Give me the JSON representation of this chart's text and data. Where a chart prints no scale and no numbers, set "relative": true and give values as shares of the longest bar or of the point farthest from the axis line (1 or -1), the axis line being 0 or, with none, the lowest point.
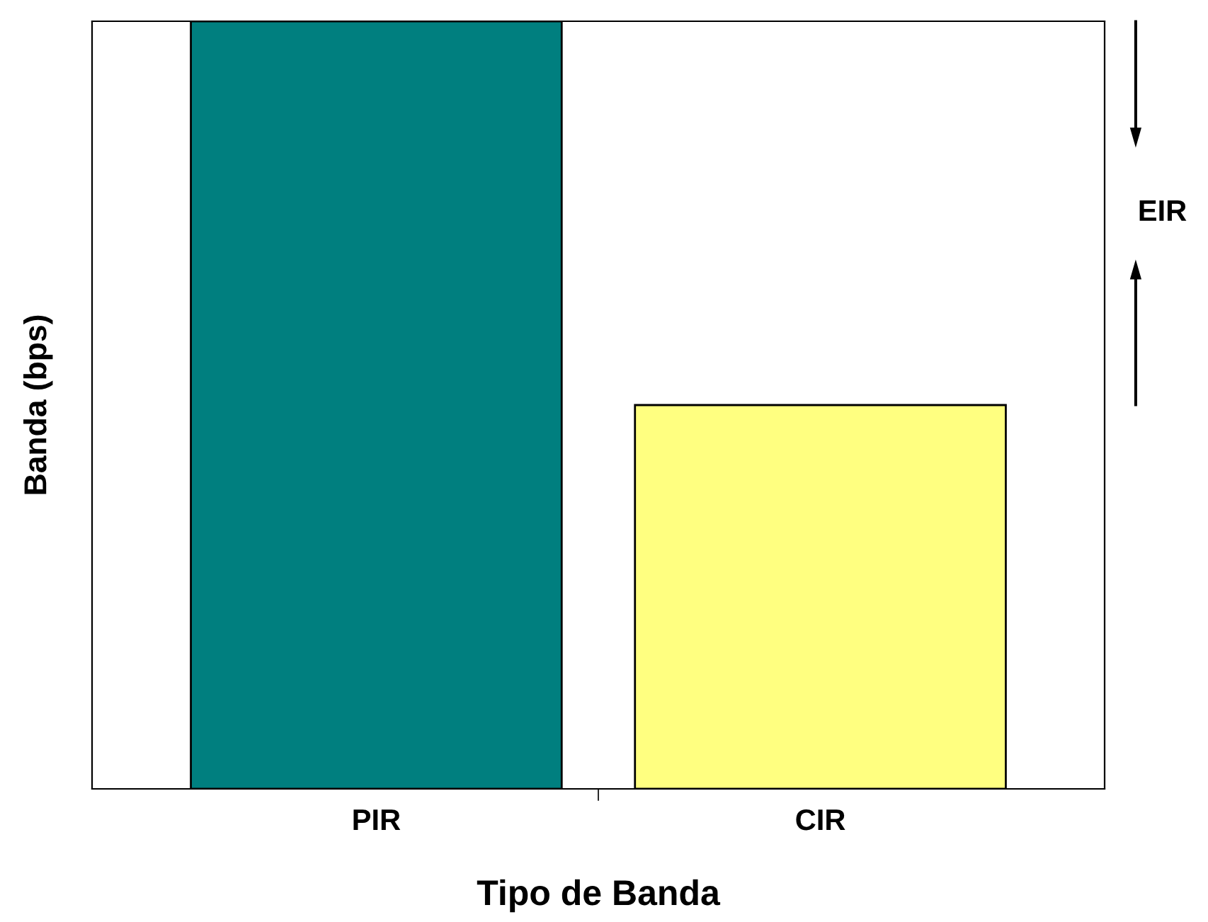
{
  "chart_data": {
    "type": "bar",
    "relative": true,
    "xlabel": "Tipo de Banda",
    "ylabel": "Banda (bps)",
    "categories": [
      "PIR",
      "CIR"
    ],
    "values": [
      1,
      0.5
    ],
    "colors": [
      "#007f7f",
      "#ffff80"
    ],
    "annotations": [
      "EIR"
    ],
    "grid": false,
    "legend": false
  }
}
